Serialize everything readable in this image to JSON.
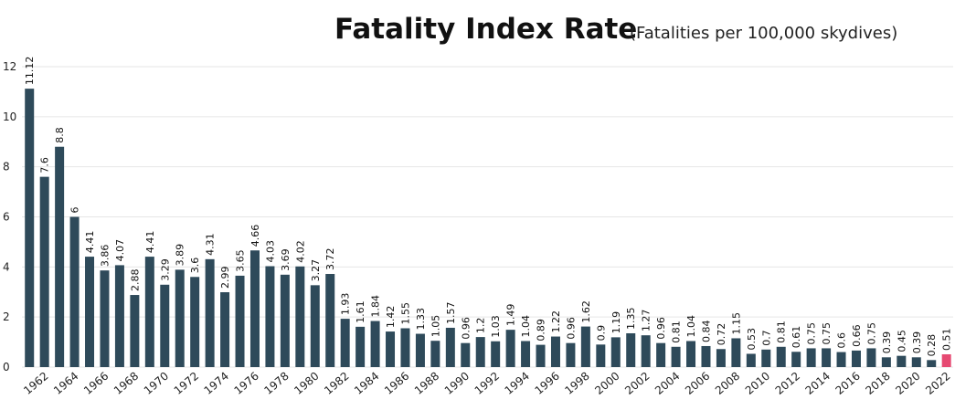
{
  "chart_data": {
    "type": "bar",
    "title": "Fatality Index Rate",
    "subtitle": "(Fatalities per 100,000 skydives)",
    "xlabel": "",
    "ylabel": "",
    "ylim": [
      0,
      12
    ],
    "yticks": [
      0,
      2,
      4,
      6,
      8,
      10,
      12
    ],
    "grid": true,
    "bar_color": "#2e4a5a",
    "highlight_color": "#e64a72",
    "highlight_category": "2022",
    "categories": [
      "1961",
      "1962",
      "1963",
      "1964",
      "1965",
      "1966",
      "1967",
      "1968",
      "1969",
      "1970",
      "1971",
      "1972",
      "1973",
      "1974",
      "1975",
      "1976",
      "1977",
      "1978",
      "1979",
      "1980",
      "1981",
      "1982",
      "1983",
      "1984",
      "1985",
      "1986",
      "1987",
      "1988",
      "1989",
      "1990",
      "1991",
      "1992",
      "1993",
      "1994",
      "1995",
      "1996",
      "1997",
      "1998",
      "1999",
      "2000",
      "2001",
      "2002",
      "2003",
      "2004",
      "2005",
      "2006",
      "2007",
      "2008",
      "2009",
      "2010",
      "2011",
      "2012",
      "2013",
      "2014",
      "2015",
      "2016",
      "2017",
      "2018",
      "2019",
      "2020",
      "2021",
      "2022"
    ],
    "tick_labels": [
      "",
      "1962",
      "",
      "1964",
      "",
      "1966",
      "",
      "1968",
      "",
      "1970",
      "",
      "1972",
      "",
      "1974",
      "",
      "1976",
      "",
      "1978",
      "",
      "1980",
      "",
      "1982",
      "",
      "1984",
      "",
      "1986",
      "",
      "1988",
      "",
      "1990",
      "",
      "1992",
      "",
      "1994",
      "",
      "1996",
      "",
      "1998",
      "",
      "2000",
      "",
      "2002",
      "",
      "2004",
      "",
      "2006",
      "",
      "2008",
      "",
      "2010",
      "",
      "2012",
      "",
      "2014",
      "",
      "2016",
      "",
      "2018",
      "",
      "2020",
      "",
      "2022"
    ],
    "values": [
      11.12,
      7.6,
      8.8,
      6,
      4.41,
      3.86,
      4.07,
      2.88,
      4.41,
      3.29,
      3.89,
      3.6,
      4.31,
      2.99,
      3.65,
      4.66,
      4.03,
      3.69,
      4.02,
      3.27,
      3.72,
      1.93,
      1.61,
      1.84,
      1.42,
      1.55,
      1.33,
      1.05,
      1.57,
      0.96,
      1.2,
      1.03,
      1.49,
      1.04,
      0.89,
      1.22,
      0.96,
      1.62,
      0.9,
      1.19,
      1.35,
      1.27,
      0.96,
      0.81,
      1.04,
      0.84,
      0.72,
      1.15,
      0.53,
      0.7,
      0.81,
      0.61,
      0.75,
      0.75,
      0.6,
      0.66,
      0.75,
      0.39,
      0.45,
      0.39,
      0.28,
      0.51
    ],
    "value_labels": [
      "11.12",
      "7.6",
      "8.8",
      "6",
      "4.41",
      "3.86",
      "4.07",
      "2.88",
      "4.41",
      "3.29",
      "3.89",
      "3.6",
      "4.31",
      "2.99",
      "3.65",
      "4.66",
      "4.03",
      "3.69",
      "4.02",
      "3.27",
      "3.72",
      "1.93",
      "1.61",
      "1.84",
      "1.42",
      "1.55",
      "1.33",
      "1.05",
      "1.57",
      "0.96",
      "1.2",
      "1.03",
      "1.49",
      "1.04",
      "0.89",
      "1.22",
      "0.96",
      "1.62",
      "0.9",
      "1.19",
      "1.35",
      "1.27",
      "0.96",
      "0.81",
      "1.04",
      "0.84",
      "0.72",
      "1.15",
      "0.53",
      "0.7",
      "0.81",
      "0.61",
      "0.75",
      "0.75",
      "0.6",
      "0.66",
      "0.75",
      "0.39",
      "0.45",
      "0.39",
      "0.28",
      "0.51"
    ]
  }
}
